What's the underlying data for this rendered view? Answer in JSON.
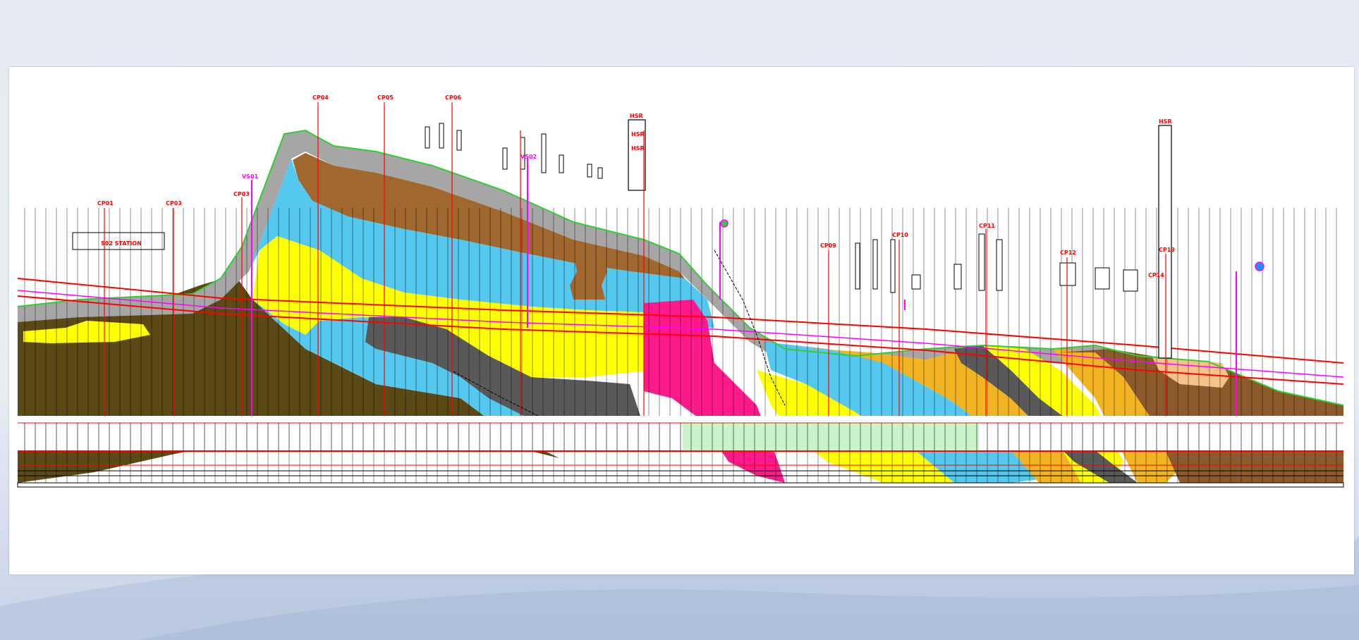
{
  "drawing": {
    "title": "",
    "annotations": {
      "portal_label_left": "S02 STATION",
      "borehole_tags": [
        "CP01",
        "CP03",
        "CP03",
        "CP04",
        "CP05",
        "CP06",
        "VS01",
        "VS02",
        "HSR",
        "HSR",
        "CP09",
        "CP10",
        "CP11",
        "CP12",
        "CP13",
        "CP14"
      ],
      "shaft_label": "HSR",
      "shaft_label_right": "HSR",
      "green_note": "",
      "magenta_note_left": "",
      "magenta_note_right": ""
    },
    "colors": {
      "ground_line": "#33cc33",
      "tunnel_line": "#ff0000",
      "tunnel_axis": "#ff00ff",
      "layer_gray": "#a6a6a6",
      "layer_brown_top": "#a0672f",
      "layer_blue": "#55c8f0",
      "layer_yellow": "#ffff00",
      "layer_darkgray": "#595959",
      "layer_olive": "#5b4a16",
      "layer_magenta": "#ff1a8c",
      "layer_orange": "#f2b422",
      "layer_tan": "#f5c28a",
      "layer_brown_right": "#8c5a2b"
    }
  }
}
